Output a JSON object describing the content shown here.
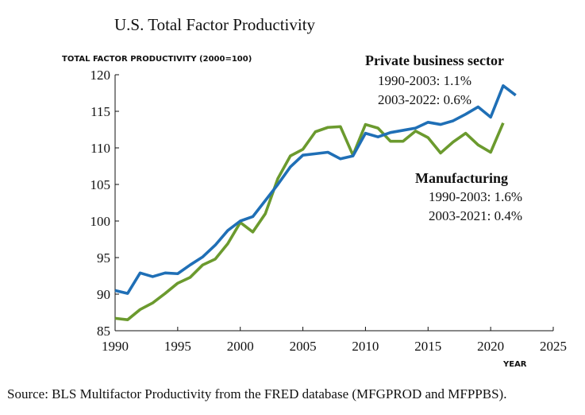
{
  "chart_data": {
    "type": "line",
    "title": "U.S. Total Factor Productivity",
    "ylabel": "TOTAL FACTOR PRODUCTIVITY (2000=100)",
    "xlabel": "YEAR",
    "xlim": [
      1990,
      2025
    ],
    "ylim": [
      85,
      120
    ],
    "xticks": [
      1990,
      1995,
      2000,
      2005,
      2010,
      2015,
      2020,
      2025
    ],
    "yticks": [
      85,
      90,
      95,
      100,
      105,
      110,
      115,
      120
    ],
    "grid": false,
    "series": [
      {
        "name": "Private business sector",
        "color": "#1f6fb6",
        "x": [
          1990,
          1991,
          1992,
          1993,
          1994,
          1995,
          1996,
          1997,
          1998,
          1999,
          2000,
          2001,
          2002,
          2003,
          2004,
          2005,
          2006,
          2007,
          2008,
          2009,
          2010,
          2011,
          2012,
          2013,
          2014,
          2015,
          2016,
          2017,
          2018,
          2019,
          2020,
          2021,
          2022
        ],
        "y": [
          90.5,
          90.1,
          92.9,
          92.4,
          92.9,
          92.8,
          94.0,
          95.1,
          96.7,
          98.7,
          100.0,
          100.6,
          102.8,
          105.0,
          107.4,
          109.0,
          109.2,
          109.4,
          108.5,
          108.9,
          112.0,
          111.5,
          112.1,
          112.4,
          112.7,
          113.5,
          113.2,
          113.7,
          114.6,
          115.6,
          114.2,
          118.5,
          117.2
        ]
      },
      {
        "name": "Manufacturing",
        "color": "#6b9a2e",
        "x": [
          1990,
          1991,
          1992,
          1993,
          1994,
          1995,
          1996,
          1997,
          1998,
          1999,
          2000,
          2001,
          2002,
          2003,
          2004,
          2005,
          2006,
          2007,
          2008,
          2009,
          2010,
          2011,
          2012,
          2013,
          2014,
          2015,
          2016,
          2017,
          2018,
          2019,
          2020,
          2021
        ],
        "y": [
          86.7,
          86.5,
          87.9,
          88.8,
          90.1,
          91.5,
          92.3,
          94.0,
          94.8,
          96.9,
          99.8,
          98.5,
          101.0,
          105.8,
          108.9,
          109.8,
          112.2,
          112.8,
          112.9,
          109.0,
          113.2,
          112.7,
          110.9,
          110.9,
          112.3,
          111.4,
          109.3,
          110.8,
          112.0,
          110.4,
          109.4,
          113.4
        ]
      }
    ],
    "annotations": [
      {
        "heading": "Private business sector",
        "lines": [
          "1990-2003: 1.1%",
          "2003-2022: 0.6%"
        ]
      },
      {
        "heading": "Manufacturing",
        "lines": [
          "1990-2003: 1.6%",
          "2003-2021: 0.4%"
        ]
      }
    ]
  },
  "source": "Source: BLS Multifactor Productivity from the FRED database (MFGPROD and MFPPBS)."
}
